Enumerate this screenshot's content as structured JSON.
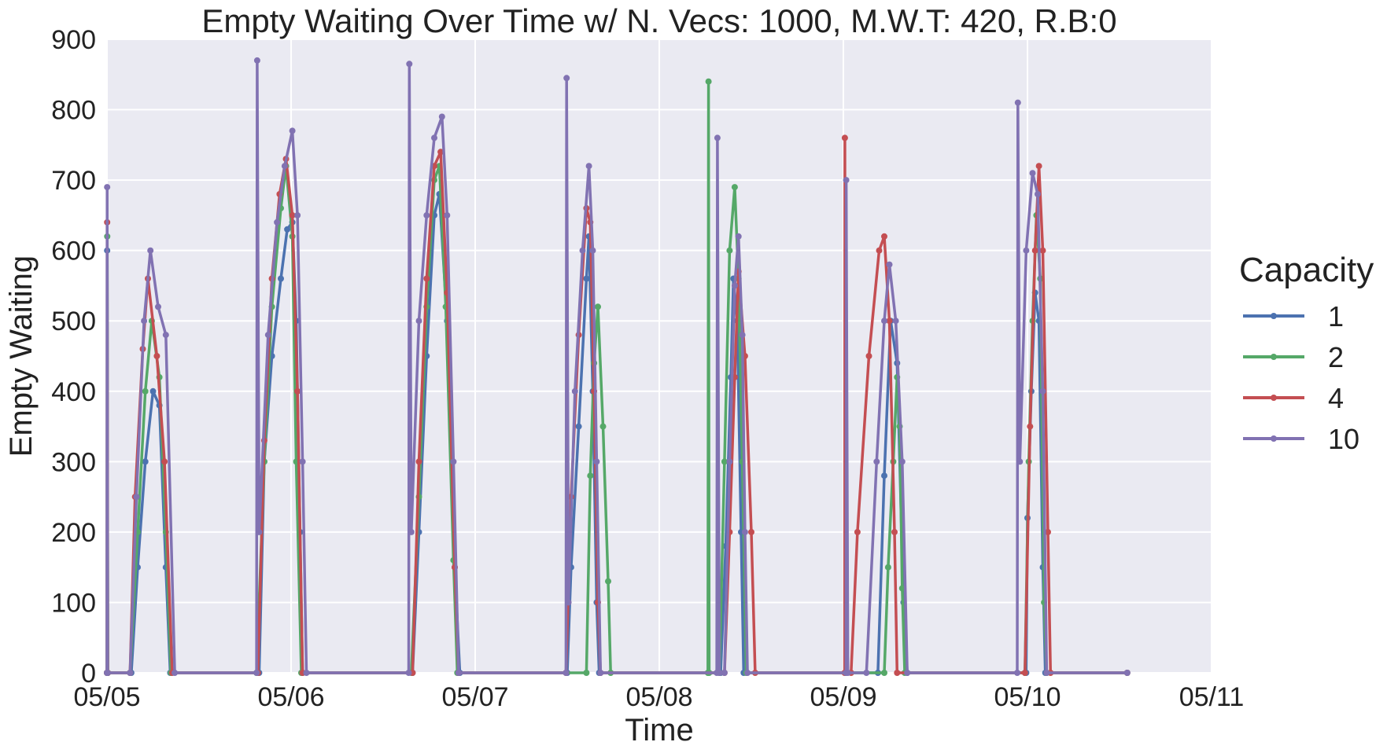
{
  "chart_data": {
    "type": "line",
    "title": "Empty Waiting Over Time w/ N. Vecs: 1000, M.W.T: 420, R.B:0",
    "xlabel": "Time",
    "ylabel": "Empty Waiting",
    "x_ticks": [
      "05/05",
      "05/06",
      "05/07",
      "05/08",
      "05/09",
      "05/10",
      "05/11"
    ],
    "y_ticks": [
      "0",
      "100",
      "200",
      "300",
      "400",
      "500",
      "600",
      "700",
      "800",
      "900"
    ],
    "xlim": [
      "05/05 00:00",
      "05/11 00:00"
    ],
    "ylim": [
      0,
      900
    ],
    "grid": true,
    "markers": true,
    "legend": {
      "title": "Capacity",
      "placement": "right"
    },
    "background_color": "#EAEAF2",
    "series": [
      {
        "name": "1",
        "color": "#4C72B0",
        "points": [
          [
            "05/05 00:00",
            0
          ],
          [
            "05/05 00:01",
            600
          ],
          [
            "05/05 00:06",
            0
          ],
          [
            "05/05 03:10",
            0
          ],
          [
            "05/05 04:00",
            150
          ],
          [
            "05/05 05:00",
            300
          ],
          [
            "05/05 06:00",
            400
          ],
          [
            "05/05 06:50",
            380
          ],
          [
            "05/05 07:40",
            150
          ],
          [
            "05/05 08:15",
            0
          ],
          [
            "05/05 19:50",
            0
          ],
          [
            "05/05 20:30",
            300
          ],
          [
            "05/05 21:30",
            450
          ],
          [
            "05/05 22:40",
            560
          ],
          [
            "05/05 23:30",
            630
          ],
          [
            "05/06 00:10",
            640
          ],
          [
            "05/06 00:40",
            500
          ],
          [
            "05/06 01:10",
            200
          ],
          [
            "05/06 01:30",
            0
          ],
          [
            "05/06 15:50",
            0
          ],
          [
            "05/06 16:40",
            200
          ],
          [
            "05/06 17:40",
            450
          ],
          [
            "05/06 18:40",
            650
          ],
          [
            "05/06 19:20",
            680
          ],
          [
            "05/06 20:20",
            500
          ],
          [
            "05/06 21:20",
            150
          ],
          [
            "05/06 22:00",
            0
          ],
          [
            "05/07 12:00",
            0
          ],
          [
            "05/07 12:30",
            150
          ],
          [
            "05/07 13:30",
            350
          ],
          [
            "05/07 14:30",
            560
          ],
          [
            "05/07 14:50",
            620
          ],
          [
            "05/07 15:20",
            400
          ],
          [
            "05/07 15:50",
            100
          ],
          [
            "05/07 16:10",
            0
          ],
          [
            "05/08 08:00",
            0
          ],
          [
            "05/08 08:40",
            180
          ],
          [
            "05/08 09:20",
            420
          ],
          [
            "05/08 09:40",
            560
          ],
          [
            "05/08 10:10",
            500
          ],
          [
            "05/08 10:40",
            200
          ],
          [
            "05/08 11:00",
            0
          ],
          [
            "05/09 04:30",
            0
          ],
          [
            "05/09 05:20",
            280
          ],
          [
            "05/09 06:10",
            500
          ],
          [
            "05/09 07:00",
            440
          ],
          [
            "05/09 07:50",
            100
          ],
          [
            "05/09 08:20",
            0
          ],
          [
            "05/09 23:50",
            0
          ],
          [
            "05/10 00:00",
            220
          ],
          [
            "05/10 00:30",
            400
          ],
          [
            "05/10 01:00",
            540
          ],
          [
            "05/10 01:30",
            500
          ],
          [
            "05/10 02:00",
            150
          ],
          [
            "05/10 02:20",
            0
          ],
          [
            "05/10 13:00",
            0
          ]
        ]
      },
      {
        "name": "2",
        "color": "#55A868",
        "points": [
          [
            "05/05 00:00",
            0
          ],
          [
            "05/05 00:02",
            620
          ],
          [
            "05/05 00:07",
            0
          ],
          [
            "05/05 03:00",
            0
          ],
          [
            "05/05 04:00",
            200
          ],
          [
            "05/05 05:00",
            400
          ],
          [
            "05/05 05:50",
            500
          ],
          [
            "05/05 06:50",
            420
          ],
          [
            "05/05 07:40",
            200
          ],
          [
            "05/05 08:20",
            0
          ],
          [
            "05/05 19:30",
            0
          ],
          [
            "05/05 20:30",
            300
          ],
          [
            "05/05 21:30",
            520
          ],
          [
            "05/05 22:40",
            660
          ],
          [
            "05/05 23:20",
            720
          ],
          [
            "05/06 00:10",
            620
          ],
          [
            "05/06 00:40",
            300
          ],
          [
            "05/06 01:20",
            0
          ],
          [
            "05/06 15:40",
            0
          ],
          [
            "05/06 16:40",
            250
          ],
          [
            "05/06 17:40",
            520
          ],
          [
            "05/06 18:40",
            700
          ],
          [
            "05/06 19:20",
            720
          ],
          [
            "05/06 20:10",
            520
          ],
          [
            "05/06 21:10",
            160
          ],
          [
            "05/06 21:40",
            0
          ],
          [
            "05/07 14:30",
            0
          ],
          [
            "05/07 15:00",
            280
          ],
          [
            "05/07 15:30",
            440
          ],
          [
            "05/07 16:00",
            520
          ],
          [
            "05/07 16:40",
            350
          ],
          [
            "05/07 17:20",
            130
          ],
          [
            "05/07 17:40",
            0
          ],
          [
            "05/08 06:20",
            0
          ],
          [
            "05/08 06:25",
            840
          ],
          [
            "05/08 06:30",
            0
          ],
          [
            "05/08 07:50",
            0
          ],
          [
            "05/08 08:30",
            300
          ],
          [
            "05/08 09:10",
            600
          ],
          [
            "05/08 09:50",
            690
          ],
          [
            "05/08 10:20",
            560
          ],
          [
            "05/08 10:50",
            300
          ],
          [
            "05/08 11:20",
            0
          ],
          [
            "05/09 05:20",
            0
          ],
          [
            "05/09 05:50",
            150
          ],
          [
            "05/09 06:30",
            300
          ],
          [
            "05/09 07:00",
            420
          ],
          [
            "05/09 07:20",
            350
          ],
          [
            "05/09 07:40",
            120
          ],
          [
            "05/09 08:00",
            0
          ],
          [
            "05/09 23:40",
            0
          ],
          [
            "05/10 00:10",
            300
          ],
          [
            "05/10 00:40",
            500
          ],
          [
            "05/10 01:10",
            650
          ],
          [
            "05/10 01:40",
            560
          ],
          [
            "05/10 02:10",
            100
          ],
          [
            "05/10 02:30",
            0
          ],
          [
            "05/10 13:00",
            0
          ]
        ]
      },
      {
        "name": "4",
        "color": "#C44E52",
        "points": [
          [
            "05/05 00:00",
            0
          ],
          [
            "05/05 00:01",
            640
          ],
          [
            "05/05 00:06",
            0
          ],
          [
            "05/05 03:00",
            0
          ],
          [
            "05/05 03:40",
            250
          ],
          [
            "05/05 04:40",
            460
          ],
          [
            "05/05 05:20",
            560
          ],
          [
            "05/05 06:30",
            450
          ],
          [
            "05/05 07:30",
            300
          ],
          [
            "05/05 08:30",
            0
          ],
          [
            "05/05 19:40",
            0
          ],
          [
            "05/05 20:30",
            330
          ],
          [
            "05/05 21:30",
            560
          ],
          [
            "05/05 22:30",
            680
          ],
          [
            "05/05 23:20",
            730
          ],
          [
            "05/06 00:10",
            650
          ],
          [
            "05/06 00:50",
            400
          ],
          [
            "05/06 01:30",
            0
          ],
          [
            "05/06 15:50",
            0
          ],
          [
            "05/06 16:40",
            300
          ],
          [
            "05/06 17:40",
            560
          ],
          [
            "05/06 18:40",
            720
          ],
          [
            "05/06 19:30",
            740
          ],
          [
            "05/06 20:20",
            540
          ],
          [
            "05/06 21:20",
            150
          ],
          [
            "05/06 21:50",
            0
          ],
          [
            "05/07 11:50",
            0
          ],
          [
            "05/07 12:30",
            250
          ],
          [
            "05/07 13:30",
            480
          ],
          [
            "05/07 14:30",
            660
          ],
          [
            "05/07 15:00",
            640
          ],
          [
            "05/07 15:30",
            400
          ],
          [
            "05/07 16:00",
            100
          ],
          [
            "05/07 16:20",
            0
          ],
          [
            "05/08 08:30",
            0
          ],
          [
            "05/08 09:10",
            200
          ],
          [
            "05/08 09:50",
            420
          ],
          [
            "05/08 10:20",
            570
          ],
          [
            "05/08 11:10",
            450
          ],
          [
            "05/08 12:00",
            200
          ],
          [
            "05/08 12:30",
            0
          ],
          [
            "05/09 00:10",
            0
          ],
          [
            "05/09 00:12",
            760
          ],
          [
            "05/09 00:15",
            0
          ],
          [
            "05/09 01:00",
            0
          ],
          [
            "05/09 01:50",
            200
          ],
          [
            "05/09 03:20",
            450
          ],
          [
            "05/09 04:40",
            600
          ],
          [
            "05/09 05:20",
            620
          ],
          [
            "05/09 06:00",
            500
          ],
          [
            "05/09 06:40",
            200
          ],
          [
            "05/09 07:00",
            0
          ],
          [
            "05/09 23:40",
            0
          ],
          [
            "05/10 00:20",
            350
          ],
          [
            "05/10 01:00",
            600
          ],
          [
            "05/10 01:30",
            720
          ],
          [
            "05/10 02:00",
            600
          ],
          [
            "05/10 02:40",
            200
          ],
          [
            "05/10 03:00",
            0
          ],
          [
            "05/10 13:00",
            0
          ]
        ]
      },
      {
        "name": "10",
        "color": "#8172B2",
        "points": [
          [
            "05/05 00:00",
            0
          ],
          [
            "05/05 00:01",
            690
          ],
          [
            "05/05 00:05",
            0
          ],
          [
            "05/05 03:00",
            0
          ],
          [
            "05/05 03:50",
            250
          ],
          [
            "05/05 04:50",
            500
          ],
          [
            "05/05 05:40",
            600
          ],
          [
            "05/05 06:40",
            520
          ],
          [
            "05/05 07:40",
            480
          ],
          [
            "05/05 08:50",
            0
          ],
          [
            "05/05 19:30",
            0
          ],
          [
            "05/05 19:35",
            870
          ],
          [
            "05/05 19:50",
            200
          ],
          [
            "05/05 21:00",
            480
          ],
          [
            "05/05 22:10",
            640
          ],
          [
            "05/05 23:10",
            720
          ],
          [
            "05/06 00:10",
            770
          ],
          [
            "05/06 00:50",
            650
          ],
          [
            "05/06 01:30",
            300
          ],
          [
            "05/06 02:00",
            0
          ],
          [
            "05/06 15:20",
            0
          ],
          [
            "05/06 15:25",
            865
          ],
          [
            "05/06 15:40",
            200
          ],
          [
            "05/06 16:40",
            500
          ],
          [
            "05/06 17:40",
            650
          ],
          [
            "05/06 18:40",
            760
          ],
          [
            "05/06 19:40",
            790
          ],
          [
            "05/06 20:20",
            650
          ],
          [
            "05/06 21:10",
            300
          ],
          [
            "05/06 21:50",
            0
          ],
          [
            "05/07 11:50",
            0
          ],
          [
            "05/07 11:55",
            845
          ],
          [
            "05/07 12:10",
            100
          ],
          [
            "05/07 13:00",
            400
          ],
          [
            "05/07 14:00",
            600
          ],
          [
            "05/07 14:50",
            720
          ],
          [
            "05/07 15:20",
            600
          ],
          [
            "05/07 15:50",
            300
          ],
          [
            "05/07 16:20",
            0
          ],
          [
            "05/08 07:30",
            0
          ],
          [
            "05/08 07:35",
            760
          ],
          [
            "05/08 07:50",
            0
          ],
          [
            "05/08 08:30",
            0
          ],
          [
            "05/08 09:10",
            300
          ],
          [
            "05/08 09:50",
            550
          ],
          [
            "05/08 10:20",
            620
          ],
          [
            "05/08 10:50",
            480
          ],
          [
            "05/08 11:10",
            200
          ],
          [
            "05/08 11:30",
            0
          ],
          [
            "05/09 00:20",
            0
          ],
          [
            "05/09 00:22",
            700
          ],
          [
            "05/09 00:35",
            0
          ],
          [
            "05/09 03:00",
            0
          ],
          [
            "05/09 04:20",
            300
          ],
          [
            "05/09 05:20",
            500
          ],
          [
            "05/09 06:00",
            580
          ],
          [
            "05/09 06:50",
            500
          ],
          [
            "05/09 07:40",
            300
          ],
          [
            "05/09 08:20",
            0
          ],
          [
            "05/09 22:40",
            0
          ],
          [
            "05/09 22:45",
            810
          ],
          [
            "05/09 23:00",
            300
          ],
          [
            "05/09 23:50",
            600
          ],
          [
            "05/10 00:40",
            710
          ],
          [
            "05/10 01:20",
            680
          ],
          [
            "05/10 02:00",
            400
          ],
          [
            "05/10 02:30",
            0
          ],
          [
            "05/10 13:00",
            0
          ]
        ]
      }
    ]
  }
}
